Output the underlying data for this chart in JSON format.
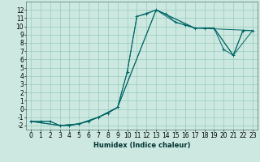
{
  "xlabel": "Humidex (Indice chaleur)",
  "bg_color": "#cce8e0",
  "grid_color": "#99ccbb",
  "line_color": "#006666",
  "xlim": [
    -0.5,
    23.5
  ],
  "ylim": [
    -2.5,
    13
  ],
  "xticks": [
    0,
    1,
    2,
    3,
    4,
    5,
    6,
    7,
    8,
    9,
    10,
    11,
    12,
    13,
    14,
    15,
    16,
    17,
    18,
    19,
    20,
    21,
    22,
    23
  ],
  "yticks": [
    -2,
    -1,
    0,
    1,
    2,
    3,
    4,
    5,
    6,
    7,
    8,
    9,
    10,
    11,
    12
  ],
  "line1": {
    "x": [
      0,
      1,
      2,
      3,
      4,
      5,
      6,
      7,
      8,
      9,
      10,
      11,
      12,
      13,
      14,
      15,
      16,
      17,
      18,
      19,
      20,
      21,
      22,
      23
    ],
    "y": [
      -1.5,
      -1.5,
      -1.5,
      -2.0,
      -2.0,
      -1.8,
      -1.5,
      -1.0,
      -0.5,
      0.2,
      4.5,
      11.2,
      11.5,
      12.0,
      11.5,
      10.5,
      10.2,
      9.8,
      9.8,
      9.8,
      7.2,
      6.5,
      9.5,
      9.5
    ]
  },
  "line2": {
    "x": [
      0,
      1,
      2,
      3,
      4,
      5,
      6,
      7,
      8,
      9,
      10,
      11,
      13,
      15,
      17,
      19,
      21,
      22,
      23
    ],
    "y": [
      -1.5,
      -1.5,
      -1.5,
      -2.0,
      -2.0,
      -1.8,
      -1.5,
      -1.0,
      -0.5,
      0.2,
      4.5,
      11.2,
      12.0,
      10.5,
      9.8,
      9.8,
      6.5,
      9.5,
      9.5
    ]
  },
  "line3": {
    "x": [
      0,
      3,
      5,
      7,
      9,
      13,
      17,
      19,
      21,
      23
    ],
    "y": [
      -1.5,
      -2.0,
      -1.8,
      -1.0,
      0.2,
      12.0,
      9.8,
      9.8,
      6.5,
      9.5
    ]
  },
  "line4": {
    "x": [
      0,
      3,
      5,
      7,
      9,
      13,
      17,
      23
    ],
    "y": [
      -1.5,
      -2.0,
      -1.8,
      -1.0,
      0.2,
      12.0,
      9.8,
      9.5
    ]
  },
  "xlabel_fontsize": 6,
  "tick_fontsize": 5.5
}
